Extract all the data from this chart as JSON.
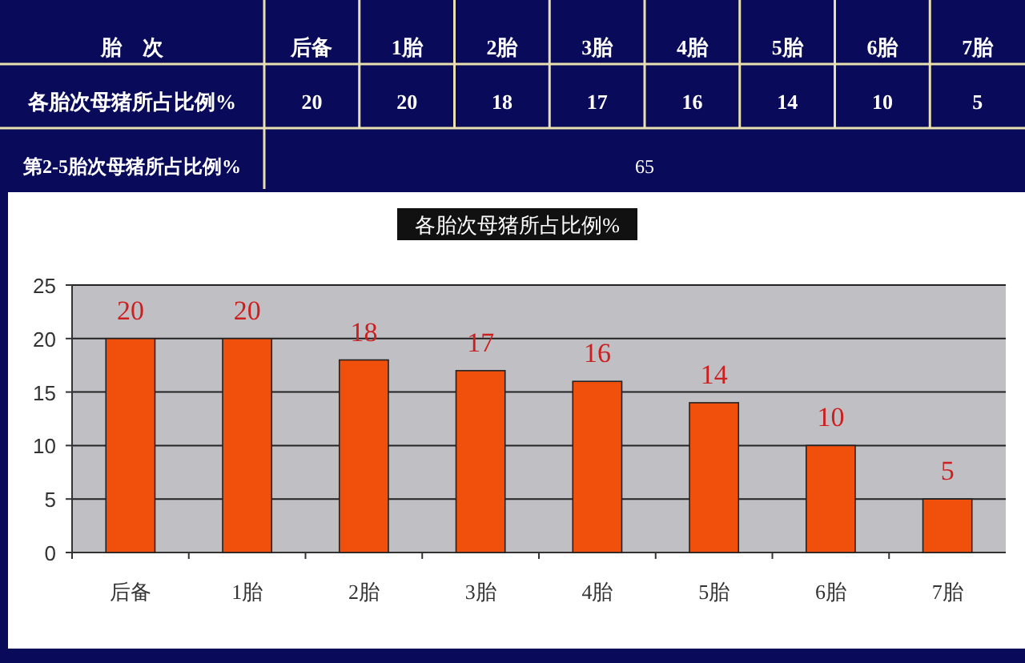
{
  "chart_data": {
    "type": "bar",
    "title": "各胎次母猪所占比例%",
    "categories": [
      "后备",
      "1胎",
      "2胎",
      "3胎",
      "4胎",
      "5胎",
      "6胎",
      "7胎"
    ],
    "values": [
      20,
      20,
      18,
      17,
      16,
      14,
      10,
      5
    ],
    "color": "#f0500c",
    "ylim": [
      0,
      25
    ],
    "yticks": [
      0,
      5,
      10,
      15,
      20,
      25
    ],
    "grid": "y",
    "data_labels": true,
    "annotations": [
      "胎　次",
      "各胎次母猪所占比例%",
      "第2-5胎次母猪所占比例%",
      "65",
      "20",
      "20",
      "18",
      "17",
      "16",
      "14",
      "10",
      "5"
    ]
  }
}
